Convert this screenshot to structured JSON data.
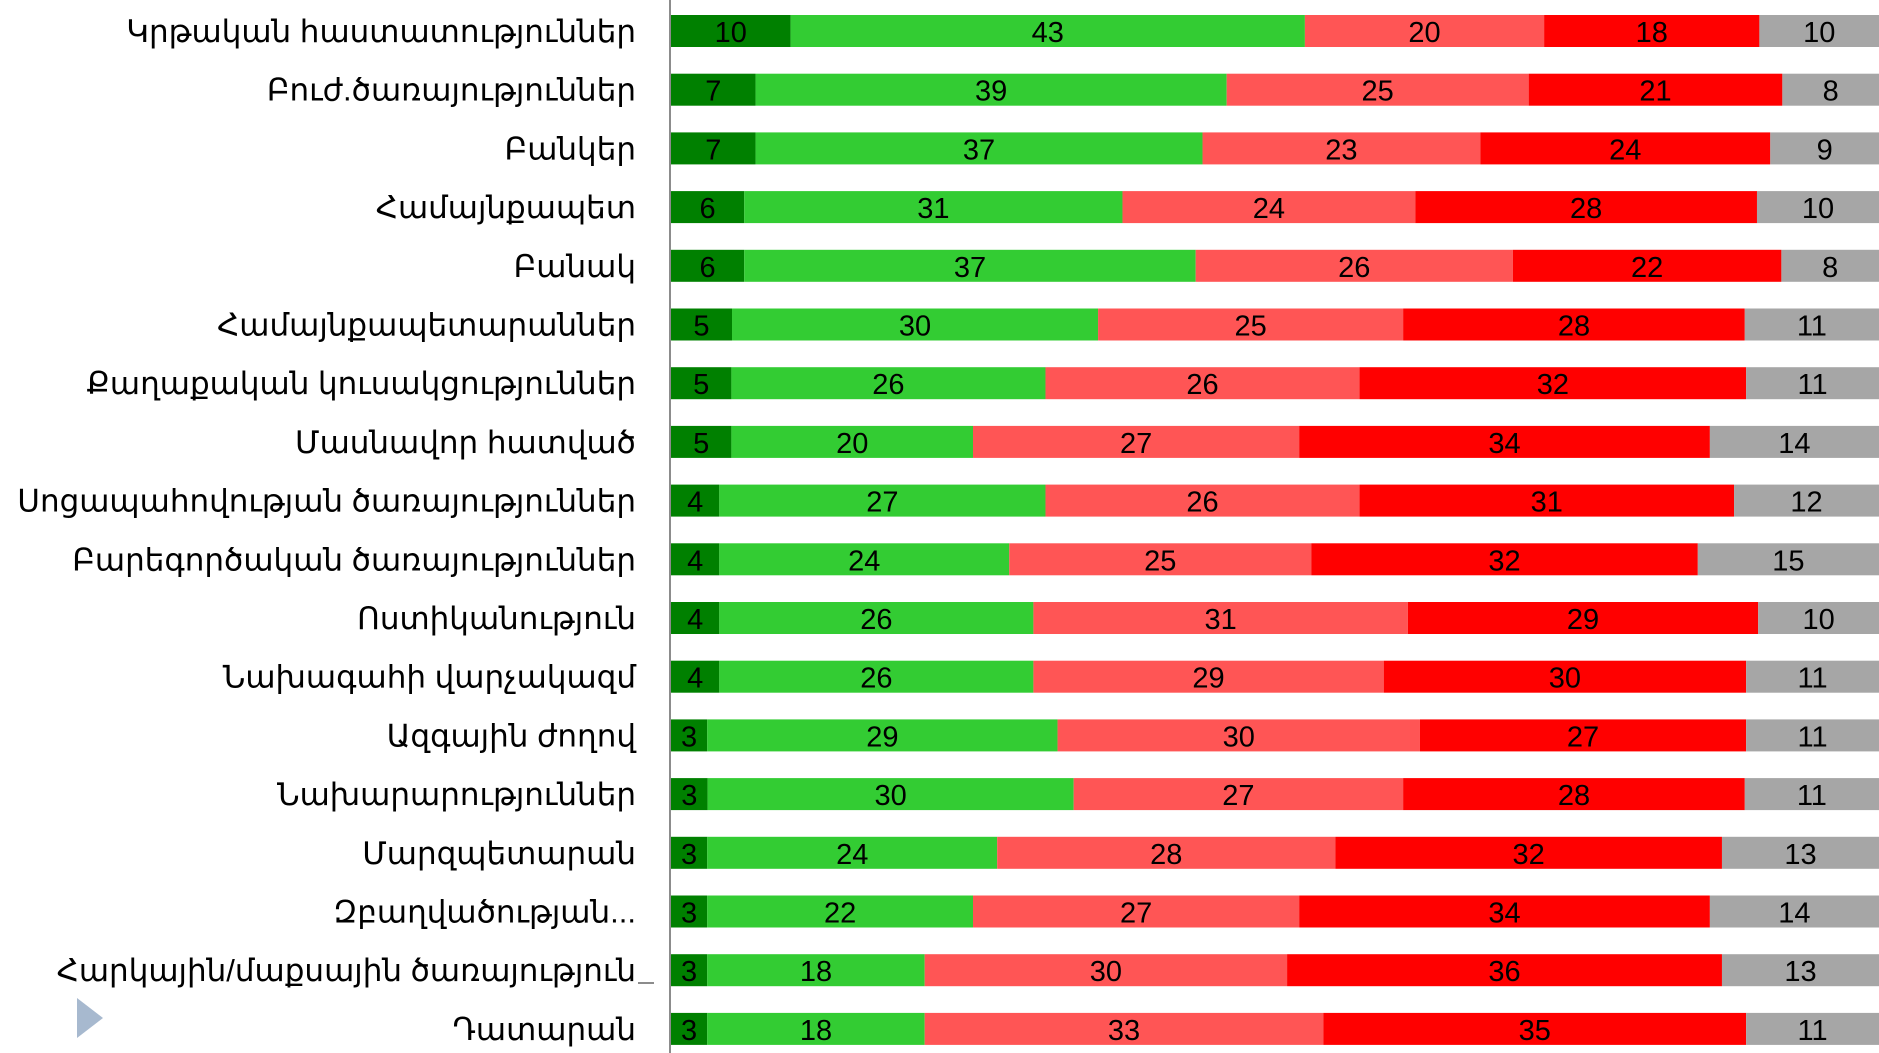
{
  "chart_data": {
    "type": "bar",
    "orientation": "horizontal",
    "stacked": true,
    "normalized": true,
    "categories": [
      "Կրթական հաստատություններ",
      "Բուժ.ծառայություններ",
      "Բանկեր",
      "Համայնքապետ",
      "Բանակ",
      "Համայնքապետարաններ",
      "Քաղաքական կուսակցություններ",
      "Մասնավոր հատված",
      "Սոցապահովության ծառայություններ",
      "Բարեգործական ծառայություններ",
      "Ոստիկանություն",
      "Նախագահի վարչակազմ",
      "Ազգային ժողով",
      "Նախարարություններ",
      "Մարզպետարան",
      "Զբաղվածության...",
      "Հարկային/մաքսային ծառայություն",
      "Դատարան"
    ],
    "series": [
      {
        "color": "#008000",
        "values": [
          10,
          7,
          7,
          6,
          6,
          5,
          5,
          5,
          4,
          4,
          4,
          4,
          3,
          3,
          3,
          3,
          3,
          3
        ]
      },
      {
        "color": "#33cc33",
        "values": [
          43,
          39,
          37,
          31,
          37,
          30,
          26,
          20,
          27,
          24,
          26,
          26,
          29,
          30,
          24,
          22,
          18,
          18
        ]
      },
      {
        "color": "#ff5555",
        "values": [
          20,
          25,
          23,
          24,
          26,
          25,
          26,
          27,
          26,
          25,
          31,
          29,
          30,
          27,
          28,
          27,
          30,
          33
        ]
      },
      {
        "color": "#ff0000",
        "values": [
          18,
          21,
          24,
          28,
          22,
          28,
          32,
          34,
          31,
          32,
          29,
          30,
          27,
          28,
          32,
          34,
          36,
          35
        ]
      },
      {
        "color": "#a6a6a6",
        "values": [
          10,
          8,
          9,
          10,
          8,
          11,
          11,
          14,
          12,
          15,
          10,
          11,
          11,
          11,
          13,
          14,
          13,
          11
        ]
      }
    ],
    "legend": "none",
    "grid": false
  },
  "controls": {
    "next_arrow_icon": "triangle-right-icon"
  }
}
